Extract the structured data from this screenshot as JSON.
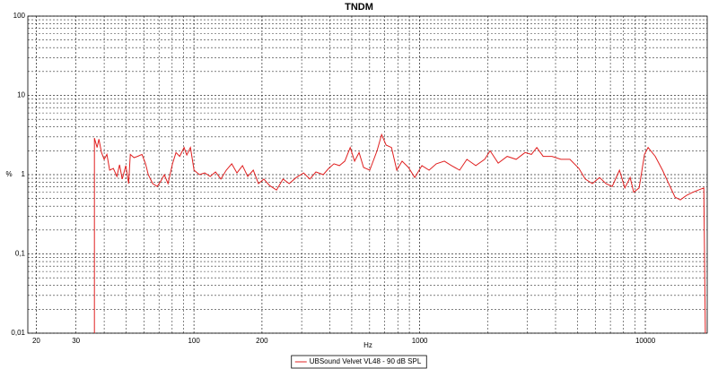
{
  "chart_data": {
    "type": "line",
    "title": "TNDM",
    "x_label": "Hz",
    "y_label": "%",
    "x": [
      36.2,
      36.2,
      37.2,
      37.9,
      38.9,
      40.0,
      41.1,
      42.3,
      43.9,
      45.5,
      46.8,
      48.1,
      49.9,
      51.3,
      52.2,
      54.2,
      56.2,
      58.8,
      61.0,
      62.7,
      65.6,
      68.7,
      71.3,
      73.9,
      76.7,
      80.3,
      83.2,
      86.4,
      90.4,
      92.9,
      96.4,
      100,
      105.7,
      111.6,
      118,
      124.5,
      131.6,
      139,
      147,
      155,
      164,
      173,
      183,
      193,
      204,
      216,
      232,
      248,
      264,
      284,
      306,
      326,
      347,
      374,
      395,
      417,
      441,
      466,
      492,
      515,
      539,
      564,
      601,
      647,
      678,
      710,
      750,
      792,
      836,
      892,
      951,
      1023,
      1101,
      1185,
      1286,
      1384,
      1503,
      1618,
      1773,
      1941,
      2051,
      2228,
      2441,
      2675,
      2931,
      3126,
      3303,
      3524,
      3857,
      4227,
      4632,
      5076,
      5415,
      5821,
      6266,
      6683,
      7129,
      7674,
      8110,
      8560,
      8877,
      9380,
      9908,
      10280,
      11060,
      11910,
      12690,
      13530,
      14290,
      15240,
      16250,
      17170,
      18150,
      18450
    ],
    "series": [
      {
        "name": "UBSound Velvet VL48 - 90 dB SPL",
        "color": "#e02020",
        "values": [
          0.01,
          2.9,
          2.2,
          2.8,
          1.9,
          1.56,
          1.8,
          1.14,
          1.2,
          0.95,
          1.33,
          0.88,
          1.3,
          0.77,
          1.8,
          1.64,
          1.7,
          1.8,
          1.37,
          1.0,
          0.77,
          0.71,
          0.83,
          1.0,
          0.77,
          1.37,
          1.9,
          1.7,
          2.2,
          1.77,
          2.2,
          1.14,
          1.0,
          1.05,
          0.95,
          1.08,
          0.88,
          1.14,
          1.37,
          1.05,
          1.3,
          0.95,
          1.14,
          0.77,
          0.88,
          0.73,
          0.64,
          0.88,
          0.77,
          0.92,
          1.05,
          0.88,
          1.08,
          1.0,
          1.2,
          1.37,
          1.3,
          1.48,
          2.2,
          1.48,
          1.9,
          1.23,
          1.14,
          2.0,
          3.2,
          2.36,
          2.2,
          1.14,
          1.48,
          1.23,
          0.92,
          1.3,
          1.14,
          1.37,
          1.48,
          1.3,
          1.14,
          1.56,
          1.3,
          1.56,
          2.0,
          1.4,
          1.7,
          1.56,
          1.9,
          1.8,
          2.2,
          1.7,
          1.7,
          1.56,
          1.56,
          1.2,
          0.88,
          0.77,
          0.92,
          0.77,
          0.71,
          1.14,
          0.68,
          0.92,
          0.6,
          0.68,
          1.8,
          2.2,
          1.7,
          1.14,
          0.77,
          0.52,
          0.48,
          0.55,
          0.6,
          0.64,
          0.68,
          0.01
        ]
      }
    ],
    "xlim": [
      18.35,
      18800
    ],
    "ylim": [
      0.01,
      100
    ],
    "log_x": true,
    "log_y": true,
    "grid": true,
    "xticks": [
      20,
      30,
      100,
      200,
      1000,
      10000
    ],
    "yticks": [
      {
        "value": 0.01,
        "label": "0,01"
      },
      {
        "value": 0.1,
        "label": "0,1"
      },
      1,
      10,
      100
    ],
    "legend": "bottom"
  }
}
